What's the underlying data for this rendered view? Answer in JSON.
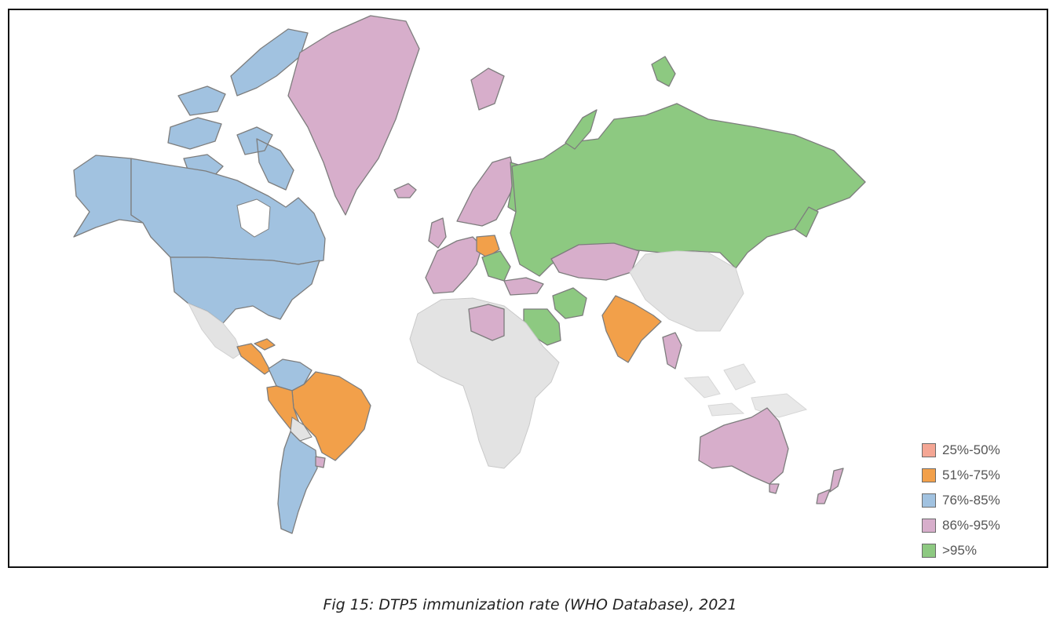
{
  "figure": {
    "caption": "Fig 15: DTP5 immunization rate (WHO Database), 2021"
  },
  "legend": {
    "items": [
      {
        "label": "25%-50%",
        "color": "#f4a694"
      },
      {
        "label": "51%-75%",
        "color": "#f2a04a"
      },
      {
        "label": "76%-85%",
        "color": "#a1c2e0"
      },
      {
        "label": "86%-95%",
        "color": "#d7aecb"
      },
      {
        "label": ">95%",
        "color": "#8dc981"
      }
    ]
  },
  "map": {
    "type": "choropleth",
    "no_data_color": "#e3e3e3",
    "regions": [
      {
        "name": "Canada",
        "category": "76%-85%"
      },
      {
        "name": "United States",
        "category": "76%-85%"
      },
      {
        "name": "Alaska",
        "category": "76%-85%"
      },
      {
        "name": "Greenland",
        "category": "86%-95%"
      },
      {
        "name": "Mexico",
        "category": "no data"
      },
      {
        "name": "Central America",
        "category": "51%-75%"
      },
      {
        "name": "Colombia",
        "category": "76%-85%"
      },
      {
        "name": "Brazil",
        "category": "51%-75%"
      },
      {
        "name": "Peru",
        "category": "51%-75%"
      },
      {
        "name": "Argentina",
        "category": "76%-85%"
      },
      {
        "name": "Uruguay",
        "category": "86%-95%"
      },
      {
        "name": "Russia",
        "category": ">95%"
      },
      {
        "name": "Kazakhstan",
        "category": "86%-95%"
      },
      {
        "name": "Iran",
        "category": ">95%"
      },
      {
        "name": "Saudi Arabia",
        "category": ">95%"
      },
      {
        "name": "India",
        "category": "51%-75%"
      },
      {
        "name": "Thailand",
        "category": "86%-95%"
      },
      {
        "name": "Australia",
        "category": "86%-95%"
      },
      {
        "name": "New Zealand",
        "category": "86%-95%"
      },
      {
        "name": "Libya",
        "category": "86%-95%"
      },
      {
        "name": "Turkey",
        "category": "86%-95%"
      },
      {
        "name": "Poland",
        "category": "51%-75%"
      },
      {
        "name": "Scandinavia",
        "category": "86%-95%"
      },
      {
        "name": "Finland",
        "category": ">95%"
      },
      {
        "name": "Western Europe",
        "category": "86%-95%"
      },
      {
        "name": "Svalbard",
        "category": ">95%"
      },
      {
        "name": "Novaya Zemlya",
        "category": ">95%"
      },
      {
        "name": "Iceland",
        "category": "86%-95%"
      },
      {
        "name": "China",
        "category": "no data"
      },
      {
        "name": "Africa",
        "category": "no data"
      },
      {
        "name": "Southeast Asia",
        "category": "no data"
      }
    ]
  }
}
